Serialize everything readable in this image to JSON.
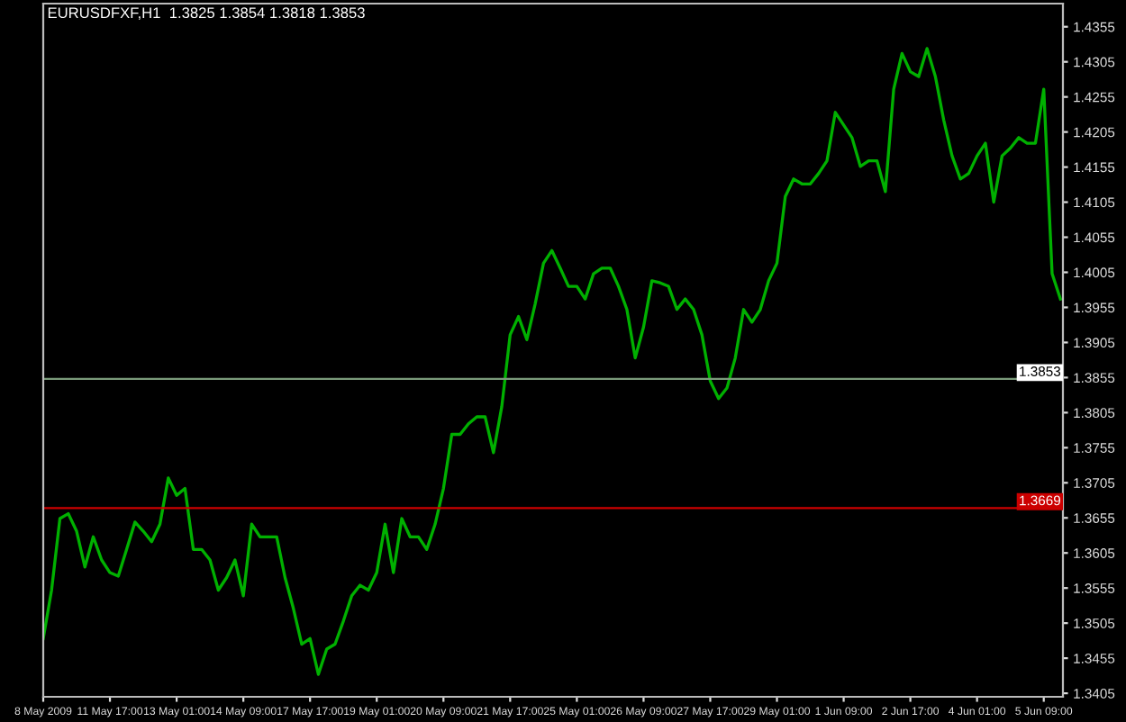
{
  "chart_data": {
    "type": "line",
    "title": "EURUSDFXF,H1  1.3825 1.3854 1.3818 1.3853",
    "categories": [
      "8 May 2009",
      null,
      null,
      null,
      null,
      null,
      null,
      null,
      "11 May 17:00",
      null,
      null,
      null,
      null,
      null,
      null,
      null,
      "13 May 01:00",
      null,
      null,
      null,
      null,
      null,
      null,
      null,
      "14 May 09:00",
      null,
      null,
      null,
      null,
      null,
      null,
      null,
      "17 May 17:00",
      null,
      null,
      null,
      null,
      null,
      null,
      null,
      "19 May 01:00",
      null,
      null,
      null,
      null,
      null,
      null,
      null,
      "20 May 09:00",
      null,
      null,
      null,
      null,
      null,
      null,
      null,
      "21 May 17:00",
      null,
      null,
      null,
      null,
      null,
      null,
      null,
      "25 May 01:00",
      null,
      null,
      null,
      null,
      null,
      null,
      null,
      "26 May 09:00",
      null,
      null,
      null,
      null,
      null,
      null,
      null,
      "27 May 17:00",
      null,
      null,
      null,
      null,
      null,
      null,
      null,
      "29 May 01:00",
      null,
      null,
      null,
      null,
      null,
      null,
      null,
      "1 Jun 09:00",
      null,
      null,
      null,
      null,
      null,
      null,
      null,
      "2 Jun 17:00",
      null,
      null,
      null,
      null,
      null,
      null,
      null,
      "4 Jun 01:00",
      null,
      null,
      null,
      null,
      null,
      null,
      null,
      "5 Jun 09:00",
      null,
      null
    ],
    "series": [
      {
        "color": "#00b000",
        "values": [
          1.3483,
          1.3552,
          1.3654,
          1.3661,
          1.3636,
          1.3585,
          1.3628,
          1.3595,
          1.3577,
          1.3572,
          1.361,
          1.3649,
          1.3636,
          1.3621,
          1.3646,
          1.3712,
          1.3687,
          1.3697,
          1.361,
          1.361,
          1.3595,
          1.3552,
          1.357,
          1.3595,
          1.3544,
          1.3646,
          1.3628,
          1.3628,
          1.3628,
          1.357,
          1.3526,
          1.3475,
          1.3483,
          1.3432,
          1.3468,
          1.3475,
          1.3508,
          1.3544,
          1.3559,
          1.3552,
          1.3577,
          1.3646,
          1.3577,
          1.3654,
          1.3628,
          1.3628,
          1.361,
          1.3646,
          1.3697,
          1.3774,
          1.3774,
          1.3789,
          1.3799,
          1.3799,
          1.3748,
          1.3814,
          1.3916,
          1.3942,
          1.3909,
          1.396,
          1.4018,
          1.4036,
          1.4011,
          1.3985,
          1.3985,
          1.3967,
          1.4003,
          1.4011,
          1.4011,
          1.3985,
          1.3952,
          1.3883,
          1.3927,
          1.3993,
          1.399,
          1.3985,
          1.3952,
          1.3967,
          1.3952,
          1.3916,
          1.385,
          1.3825,
          1.384,
          1.3883,
          1.3952,
          1.3934,
          1.3952,
          1.3993,
          1.4018,
          1.4113,
          1.4138,
          1.4131,
          1.4131,
          1.4146,
          1.4164,
          1.4233,
          1.4215,
          1.4197,
          1.4156,
          1.4164,
          1.4164,
          1.412,
          1.4266,
          1.4317,
          1.4291,
          1.4284,
          1.4324,
          1.4284,
          1.4222,
          1.4171,
          1.4138,
          1.4146,
          1.4171,
          1.4189,
          1.4105,
          1.4171,
          1.4182,
          1.4197,
          1.4189,
          1.4189,
          1.4266,
          1.4003,
          1.3967
        ]
      }
    ],
    "ylim": [
      1.34,
      1.4388
    ],
    "yticks": [
      1.3405,
      1.3455,
      1.3505,
      1.3555,
      1.3605,
      1.3655,
      1.3705,
      1.3755,
      1.3805,
      1.3855,
      1.3905,
      1.3955,
      1.4005,
      1.4055,
      1.4105,
      1.4155,
      1.4205,
      1.4255,
      1.4305,
      1.4355
    ],
    "ref_lines": [
      {
        "axis": "y",
        "value": 1.3853,
        "label": "1.3853",
        "color": "#7a9a7a",
        "line_style": "solid"
      },
      {
        "axis": "y",
        "value": 1.3669,
        "label": "1.3669",
        "color": "#cc0000",
        "line_style": "solid"
      }
    ],
    "grid": false,
    "legend": false,
    "marker": "none",
    "line_style": "solid"
  }
}
